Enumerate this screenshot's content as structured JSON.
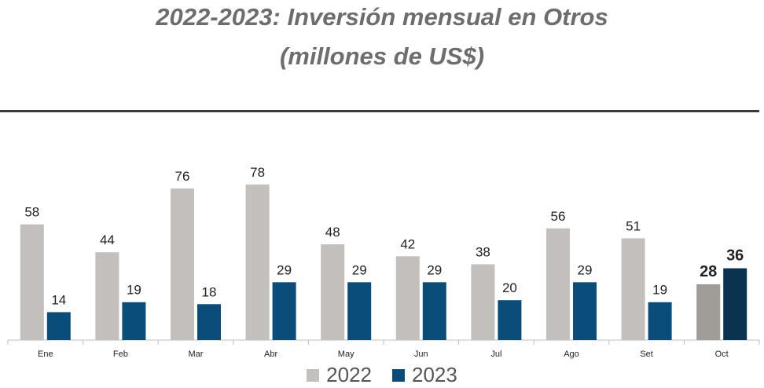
{
  "chart_data": {
    "type": "bar",
    "title": "2022-2023: Inversión mensual en Otros",
    "subtitle": "(millones de US$)",
    "categories": [
      "Ene",
      "Feb",
      "Mar",
      "Abr",
      "May",
      "Jun",
      "Jul",
      "Ago",
      "Set",
      "Oct"
    ],
    "series": [
      {
        "name": "2022",
        "values": [
          58,
          44,
          76,
          78,
          48,
          42,
          38,
          56,
          51,
          28
        ],
        "color": "#c2bfbc",
        "highlight_color": "#a09c98"
      },
      {
        "name": "2023",
        "values": [
          14,
          19,
          18,
          29,
          29,
          29,
          20,
          29,
          19,
          36
        ],
        "color": "#0a4c7a",
        "highlight_color": "#0a3350"
      }
    ],
    "highlighted_category": "Oct",
    "ylim": [
      0,
      90
    ],
    "legend_position": "bottom",
    "grid": false
  }
}
